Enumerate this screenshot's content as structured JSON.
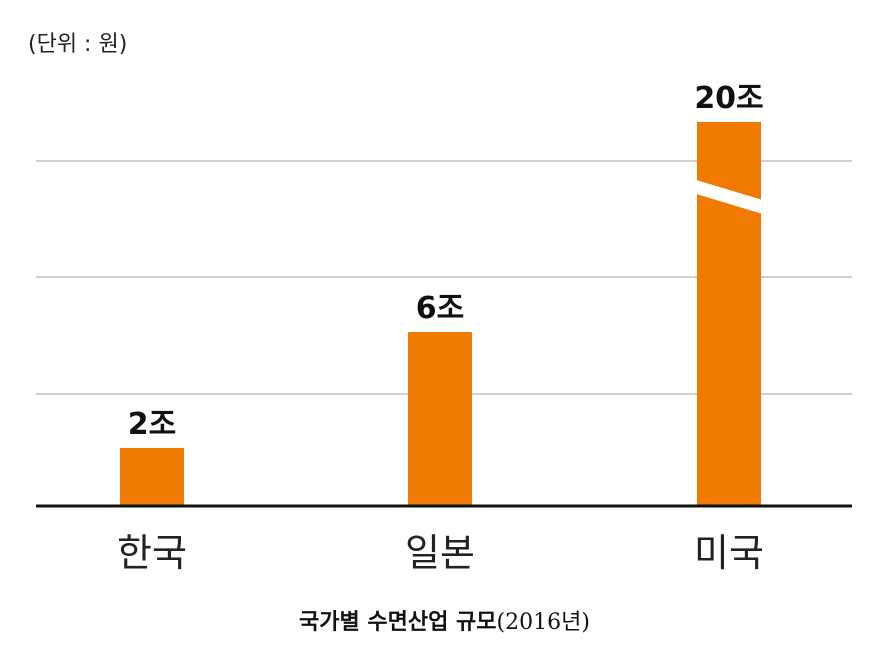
{
  "unit_label": "(단위 : 원)",
  "caption": {
    "title": "국가별 수면산업 규모",
    "year": "(2016년)"
  },
  "colors": {
    "bar": "#f07a00",
    "grid": "#cfcfcf",
    "axis": "#111111"
  },
  "chart_data": {
    "type": "bar",
    "categories": [
      "한국",
      "일본",
      "미국"
    ],
    "values": [
      2,
      6,
      20
    ],
    "data_labels": [
      "2조",
      "6조",
      "20조"
    ],
    "unit": "원",
    "axis_break": true,
    "grid": true,
    "legend": "none"
  }
}
